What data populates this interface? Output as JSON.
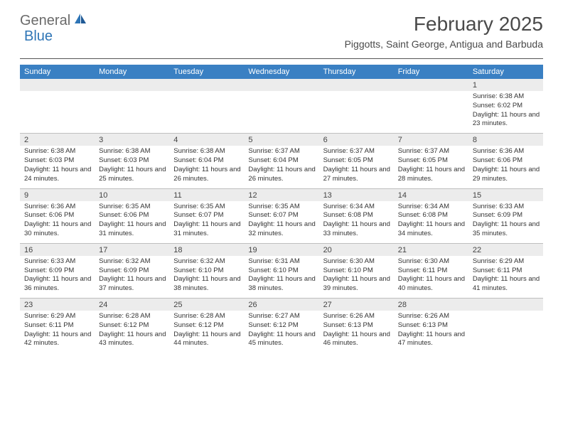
{
  "logo": {
    "text1": "General",
    "text2": "Blue"
  },
  "title": "February 2025",
  "subtitle": "Piggotts, Saint George, Antigua and Barbuda",
  "colors": {
    "header_bar": "#3a80c3",
    "daynum_bg": "#ececec",
    "border": "#bfbfbf",
    "logo_blue": "#2e75b6",
    "logo_gray": "#6a6a6a"
  },
  "daynames": [
    "Sunday",
    "Monday",
    "Tuesday",
    "Wednesday",
    "Thursday",
    "Friday",
    "Saturday"
  ],
  "weeks": [
    [
      {
        "n": "",
        "sr": "",
        "ss": "",
        "dl": ""
      },
      {
        "n": "",
        "sr": "",
        "ss": "",
        "dl": ""
      },
      {
        "n": "",
        "sr": "",
        "ss": "",
        "dl": ""
      },
      {
        "n": "",
        "sr": "",
        "ss": "",
        "dl": ""
      },
      {
        "n": "",
        "sr": "",
        "ss": "",
        "dl": ""
      },
      {
        "n": "",
        "sr": "",
        "ss": "",
        "dl": ""
      },
      {
        "n": "1",
        "sr": "Sunrise: 6:38 AM",
        "ss": "Sunset: 6:02 PM",
        "dl": "Daylight: 11 hours and 23 minutes."
      }
    ],
    [
      {
        "n": "2",
        "sr": "Sunrise: 6:38 AM",
        "ss": "Sunset: 6:03 PM",
        "dl": "Daylight: 11 hours and 24 minutes."
      },
      {
        "n": "3",
        "sr": "Sunrise: 6:38 AM",
        "ss": "Sunset: 6:03 PM",
        "dl": "Daylight: 11 hours and 25 minutes."
      },
      {
        "n": "4",
        "sr": "Sunrise: 6:38 AM",
        "ss": "Sunset: 6:04 PM",
        "dl": "Daylight: 11 hours and 26 minutes."
      },
      {
        "n": "5",
        "sr": "Sunrise: 6:37 AM",
        "ss": "Sunset: 6:04 PM",
        "dl": "Daylight: 11 hours and 26 minutes."
      },
      {
        "n": "6",
        "sr": "Sunrise: 6:37 AM",
        "ss": "Sunset: 6:05 PM",
        "dl": "Daylight: 11 hours and 27 minutes."
      },
      {
        "n": "7",
        "sr": "Sunrise: 6:37 AM",
        "ss": "Sunset: 6:05 PM",
        "dl": "Daylight: 11 hours and 28 minutes."
      },
      {
        "n": "8",
        "sr": "Sunrise: 6:36 AM",
        "ss": "Sunset: 6:06 PM",
        "dl": "Daylight: 11 hours and 29 minutes."
      }
    ],
    [
      {
        "n": "9",
        "sr": "Sunrise: 6:36 AM",
        "ss": "Sunset: 6:06 PM",
        "dl": "Daylight: 11 hours and 30 minutes."
      },
      {
        "n": "10",
        "sr": "Sunrise: 6:35 AM",
        "ss": "Sunset: 6:06 PM",
        "dl": "Daylight: 11 hours and 31 minutes."
      },
      {
        "n": "11",
        "sr": "Sunrise: 6:35 AM",
        "ss": "Sunset: 6:07 PM",
        "dl": "Daylight: 11 hours and 31 minutes."
      },
      {
        "n": "12",
        "sr": "Sunrise: 6:35 AM",
        "ss": "Sunset: 6:07 PM",
        "dl": "Daylight: 11 hours and 32 minutes."
      },
      {
        "n": "13",
        "sr": "Sunrise: 6:34 AM",
        "ss": "Sunset: 6:08 PM",
        "dl": "Daylight: 11 hours and 33 minutes."
      },
      {
        "n": "14",
        "sr": "Sunrise: 6:34 AM",
        "ss": "Sunset: 6:08 PM",
        "dl": "Daylight: 11 hours and 34 minutes."
      },
      {
        "n": "15",
        "sr": "Sunrise: 6:33 AM",
        "ss": "Sunset: 6:09 PM",
        "dl": "Daylight: 11 hours and 35 minutes."
      }
    ],
    [
      {
        "n": "16",
        "sr": "Sunrise: 6:33 AM",
        "ss": "Sunset: 6:09 PM",
        "dl": "Daylight: 11 hours and 36 minutes."
      },
      {
        "n": "17",
        "sr": "Sunrise: 6:32 AM",
        "ss": "Sunset: 6:09 PM",
        "dl": "Daylight: 11 hours and 37 minutes."
      },
      {
        "n": "18",
        "sr": "Sunrise: 6:32 AM",
        "ss": "Sunset: 6:10 PM",
        "dl": "Daylight: 11 hours and 38 minutes."
      },
      {
        "n": "19",
        "sr": "Sunrise: 6:31 AM",
        "ss": "Sunset: 6:10 PM",
        "dl": "Daylight: 11 hours and 38 minutes."
      },
      {
        "n": "20",
        "sr": "Sunrise: 6:30 AM",
        "ss": "Sunset: 6:10 PM",
        "dl": "Daylight: 11 hours and 39 minutes."
      },
      {
        "n": "21",
        "sr": "Sunrise: 6:30 AM",
        "ss": "Sunset: 6:11 PM",
        "dl": "Daylight: 11 hours and 40 minutes."
      },
      {
        "n": "22",
        "sr": "Sunrise: 6:29 AM",
        "ss": "Sunset: 6:11 PM",
        "dl": "Daylight: 11 hours and 41 minutes."
      }
    ],
    [
      {
        "n": "23",
        "sr": "Sunrise: 6:29 AM",
        "ss": "Sunset: 6:11 PM",
        "dl": "Daylight: 11 hours and 42 minutes."
      },
      {
        "n": "24",
        "sr": "Sunrise: 6:28 AM",
        "ss": "Sunset: 6:12 PM",
        "dl": "Daylight: 11 hours and 43 minutes."
      },
      {
        "n": "25",
        "sr": "Sunrise: 6:28 AM",
        "ss": "Sunset: 6:12 PM",
        "dl": "Daylight: 11 hours and 44 minutes."
      },
      {
        "n": "26",
        "sr": "Sunrise: 6:27 AM",
        "ss": "Sunset: 6:12 PM",
        "dl": "Daylight: 11 hours and 45 minutes."
      },
      {
        "n": "27",
        "sr": "Sunrise: 6:26 AM",
        "ss": "Sunset: 6:13 PM",
        "dl": "Daylight: 11 hours and 46 minutes."
      },
      {
        "n": "28",
        "sr": "Sunrise: 6:26 AM",
        "ss": "Sunset: 6:13 PM",
        "dl": "Daylight: 11 hours and 47 minutes."
      },
      {
        "n": "",
        "sr": "",
        "ss": "",
        "dl": ""
      }
    ]
  ]
}
